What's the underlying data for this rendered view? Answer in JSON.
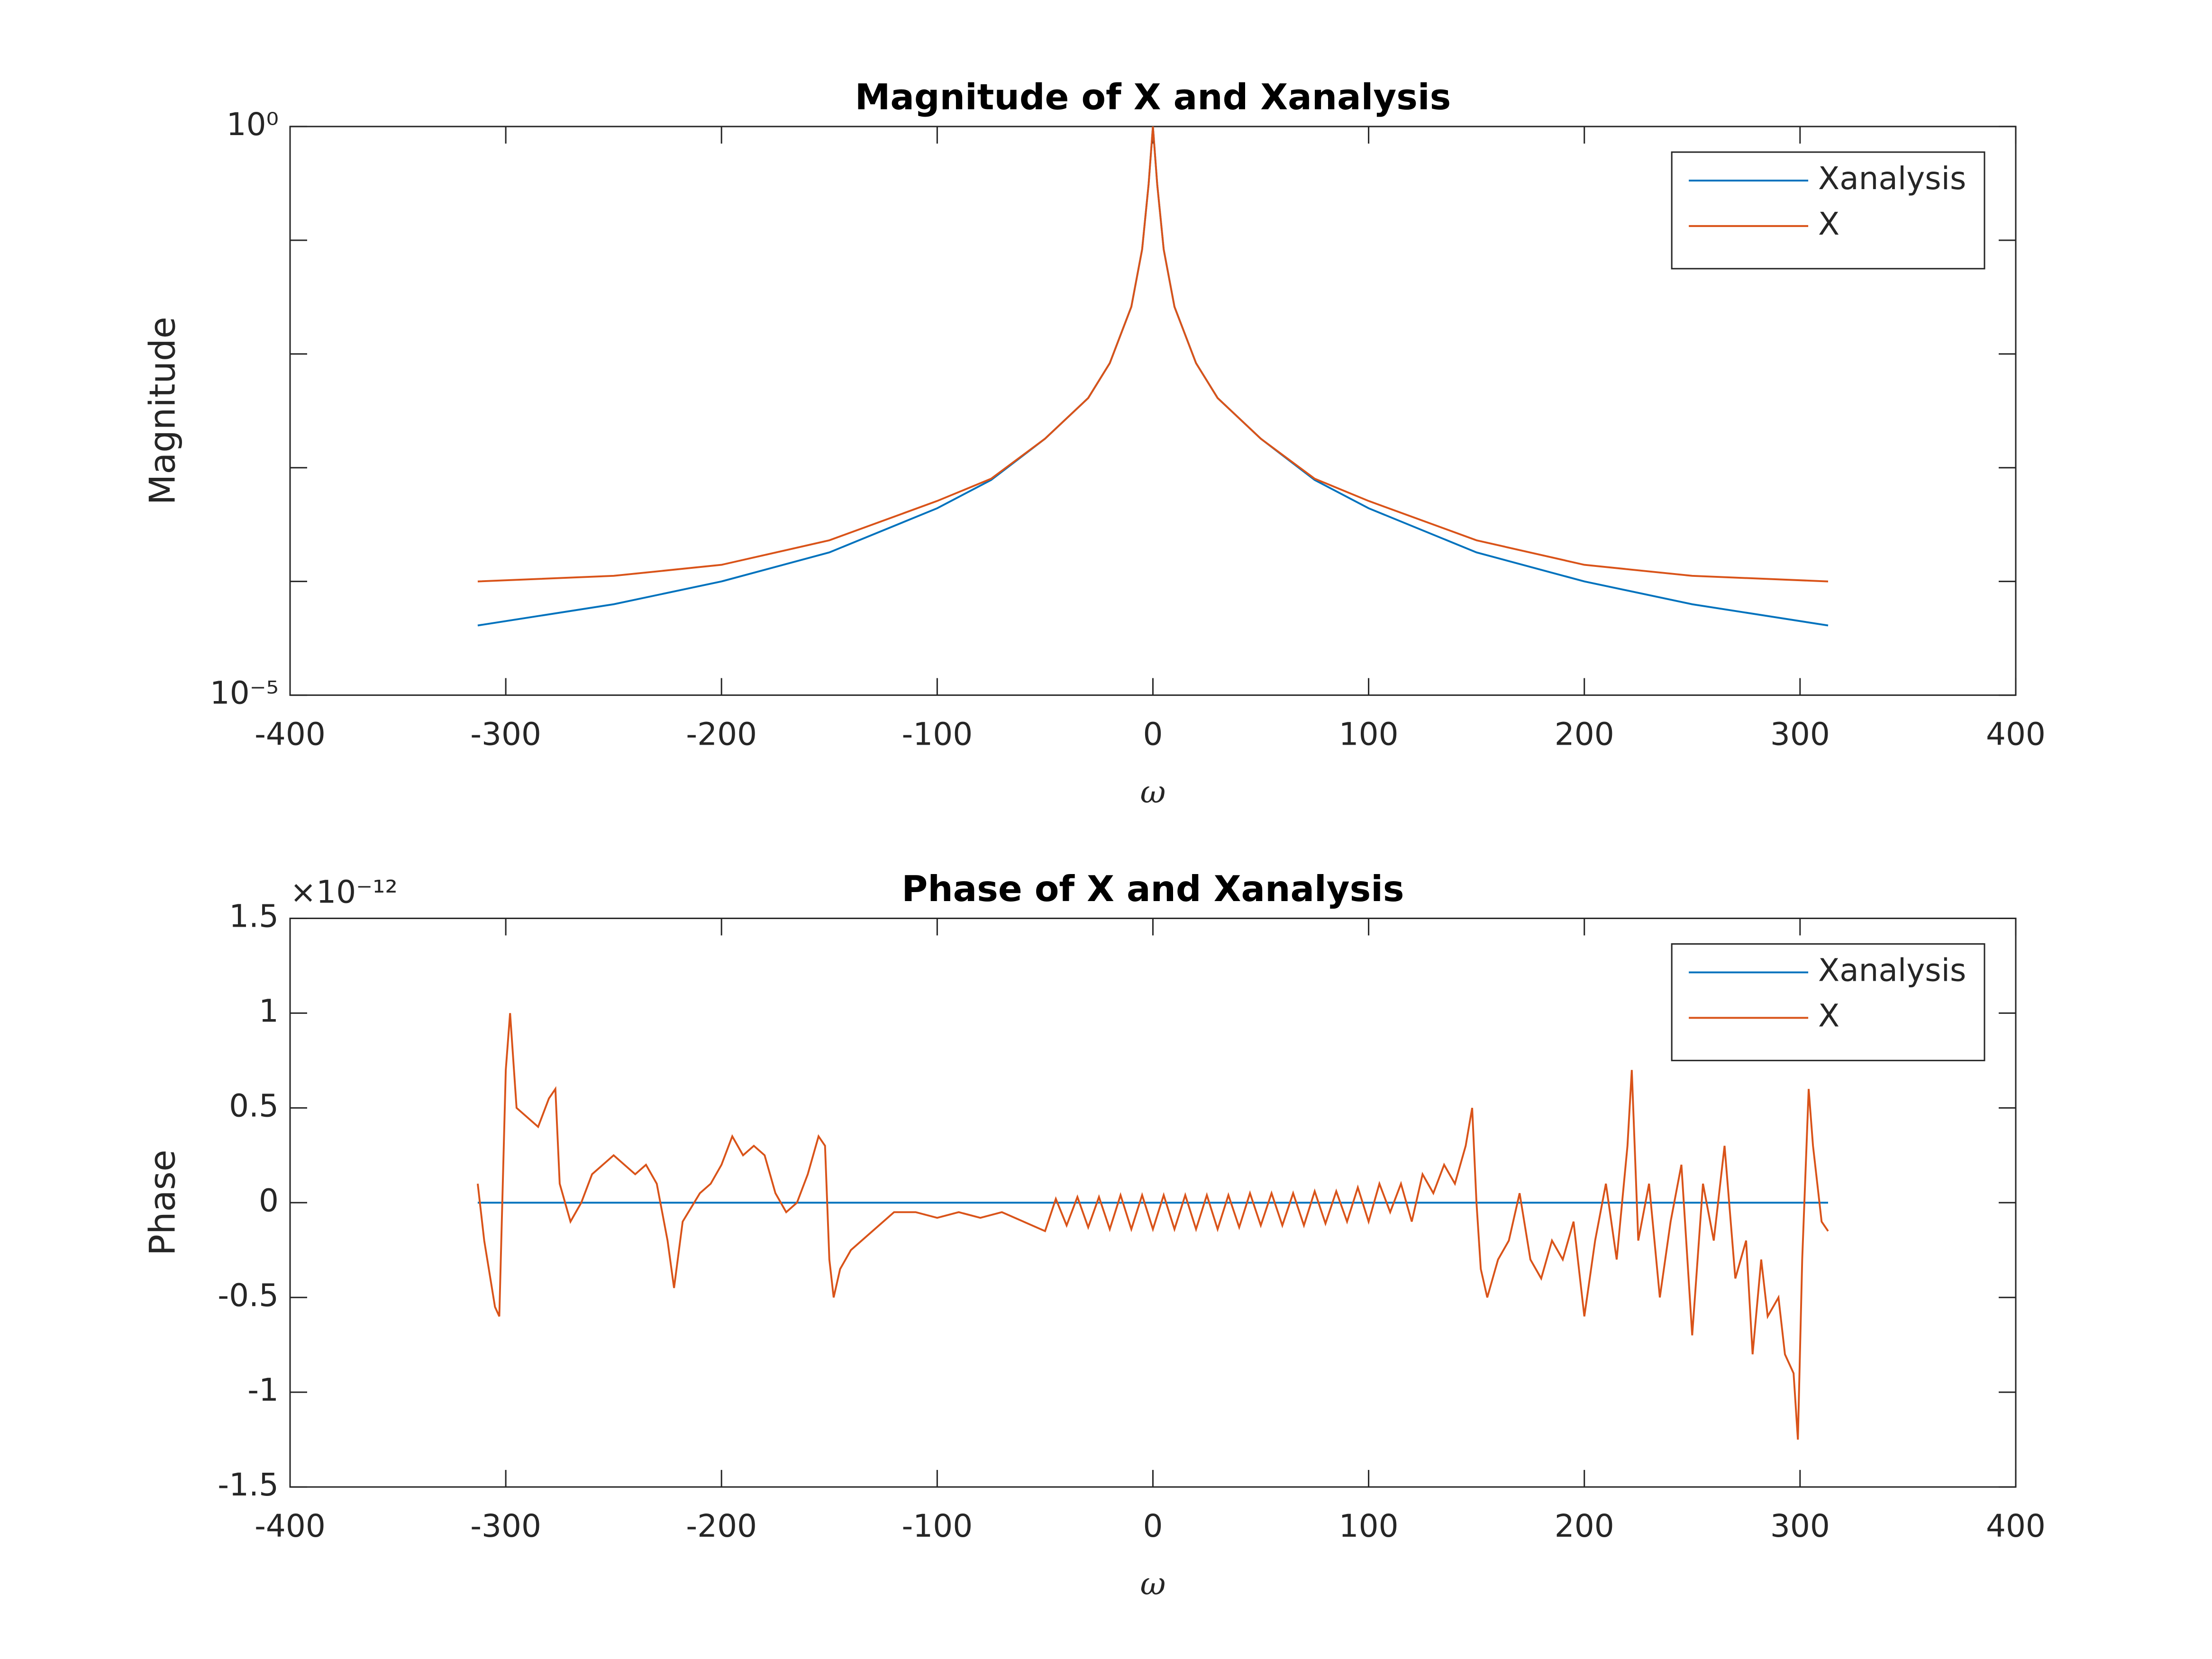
{
  "chart_data": [
    {
      "type": "line",
      "title": "Magnitude of X and Xanalysis",
      "xlabel": "ω",
      "ylabel": "Magnitude",
      "log_y": true,
      "legend": "northeast",
      "xlim": [
        -400,
        400
      ],
      "xticks": [
        -400,
        -300,
        -200,
        -100,
        0,
        100,
        200,
        300,
        400
      ],
      "ylim": [
        1e-05,
        1
      ],
      "yticks": [
        {
          "value": 1e-05,
          "label": "10⁻⁵"
        },
        {
          "value": 0.0001,
          "label": null
        },
        {
          "value": 0.001,
          "label": null
        },
        {
          "value": 0.01,
          "label": null
        },
        {
          "value": 0.1,
          "label": null
        },
        {
          "value": 1,
          "label": "10⁰"
        }
      ],
      "series": [
        {
          "name": "Xanalysis",
          "color": "#0072bd",
          "x": [
            -313,
            -250,
            -200,
            -150,
            -100,
            -75,
            -50,
            -30,
            -20,
            -10,
            -5,
            -2,
            0,
            2,
            5,
            10,
            20,
            30,
            50,
            75,
            100,
            150,
            200,
            250,
            313
          ],
          "values": [
            4.1e-05,
            6.3e-05,
            0.0001,
            0.00018,
            0.00044,
            0.00078,
            0.0018,
            0.0041,
            0.0083,
            0.026,
            0.083,
            0.31,
            1,
            0.31,
            0.083,
            0.026,
            0.0083,
            0.0041,
            0.0018,
            0.00078,
            0.00044,
            0.00018,
            0.0001,
            6.3e-05,
            4.1e-05
          ]
        },
        {
          "name": "X",
          "color": "#d95319",
          "x": [
            -313,
            -250,
            -200,
            -150,
            -100,
            -75,
            -50,
            -30,
            -20,
            -10,
            -5,
            -2,
            0,
            2,
            5,
            10,
            20,
            30,
            50,
            75,
            100,
            150,
            200,
            250,
            313
          ],
          "values": [
            0.0001,
            0.000112,
            0.00014,
            0.00023,
            0.00051,
            0.0008,
            0.0018,
            0.0041,
            0.0083,
            0.026,
            0.083,
            0.31,
            1,
            0.31,
            0.083,
            0.026,
            0.0083,
            0.0041,
            0.0018,
            0.0008,
            0.00051,
            0.00023,
            0.00014,
            0.000112,
            0.0001
          ]
        }
      ]
    },
    {
      "type": "line",
      "title": "Phase of X and Xanalysis",
      "xlabel": "ω",
      "ylabel": "Phase",
      "y_multiplier": "×10⁻¹²",
      "legend": "northeast",
      "xlim": [
        -400,
        400
      ],
      "xticks": [
        -400,
        -300,
        -200,
        -100,
        0,
        100,
        200,
        300,
        400
      ],
      "ylim": [
        -1.5,
        1.5
      ],
      "yticks": [
        -1.5,
        -1,
        -0.5,
        0,
        0.5,
        1,
        1.5
      ],
      "series": [
        {
          "name": "Xanalysis",
          "color": "#0072bd",
          "x": [
            -313,
            313
          ],
          "values": [
            0,
            0
          ]
        },
        {
          "name": "X",
          "color": "#d95319",
          "x": [
            -313,
            -310,
            -305,
            -303,
            -300,
            -298,
            -295,
            -290,
            -285,
            -280,
            -277,
            -275,
            -270,
            -265,
            -260,
            -255,
            -250,
            -245,
            -240,
            -235,
            -230,
            -225,
            -222,
            -218,
            -210,
            -205,
            -200,
            -195,
            -190,
            -185,
            -180,
            -175,
            -170,
            -165,
            -160,
            -155,
            -152,
            -150,
            -148,
            -145,
            -140,
            -130,
            -120,
            -110,
            -100,
            -90,
            -80,
            -70,
            -60,
            -50,
            -45,
            -40,
            -35,
            -30,
            -25,
            -20,
            -15,
            -10,
            -5,
            0,
            5,
            10,
            15,
            20,
            25,
            30,
            35,
            40,
            45,
            50,
            55,
            60,
            65,
            70,
            75,
            80,
            85,
            90,
            95,
            100,
            105,
            110,
            115,
            120,
            125,
            130,
            135,
            140,
            145,
            148,
            150,
            152,
            155,
            160,
            165,
            170,
            175,
            180,
            185,
            190,
            195,
            200,
            205,
            210,
            215,
            220,
            222,
            225,
            230,
            235,
            240,
            245,
            250,
            255,
            260,
            265,
            270,
            275,
            278,
            282,
            285,
            290,
            293,
            297,
            299,
            301,
            304,
            306,
            308,
            310,
            313
          ],
          "values": [
            0.1,
            -0.2,
            -0.55,
            -0.6,
            0.7,
            1.0,
            0.5,
            0.45,
            0.4,
            0.55,
            0.6,
            0.1,
            -0.1,
            0.0,
            0.15,
            0.2,
            0.25,
            0.2,
            0.15,
            0.2,
            0.1,
            -0.2,
            -0.45,
            -0.1,
            0.05,
            0.1,
            0.2,
            0.35,
            0.25,
            0.3,
            0.25,
            0.05,
            -0.05,
            0.0,
            0.15,
            0.35,
            0.3,
            -0.3,
            -0.5,
            -0.35,
            -0.25,
            -0.15,
            -0.05,
            -0.05,
            -0.08,
            -0.05,
            -0.08,
            -0.05,
            -0.1,
            -0.15,
            0.02,
            -0.12,
            0.03,
            -0.13,
            0.03,
            -0.14,
            0.04,
            -0.14,
            0.04,
            -0.14,
            0.04,
            -0.14,
            0.04,
            -0.14,
            0.04,
            -0.14,
            0.04,
            -0.13,
            0.05,
            -0.12,
            0.05,
            -0.12,
            0.05,
            -0.12,
            0.06,
            -0.11,
            0.06,
            -0.1,
            0.08,
            -0.1,
            0.1,
            -0.05,
            0.1,
            -0.1,
            0.15,
            0.05,
            0.2,
            0.1,
            0.3,
            0.5,
            0.0,
            -0.35,
            -0.5,
            -0.3,
            -0.2,
            0.05,
            -0.3,
            -0.4,
            -0.2,
            -0.3,
            -0.1,
            -0.6,
            -0.2,
            0.1,
            -0.3,
            0.3,
            0.7,
            -0.2,
            0.1,
            -0.5,
            -0.1,
            0.2,
            -0.7,
            0.1,
            -0.2,
            0.3,
            -0.4,
            -0.2,
            -0.8,
            -0.3,
            -0.6,
            -0.5,
            -0.8,
            -0.9,
            -1.25,
            -0.3,
            0.6,
            0.3,
            0.1,
            -0.1,
            -0.15
          ]
        }
      ]
    }
  ]
}
